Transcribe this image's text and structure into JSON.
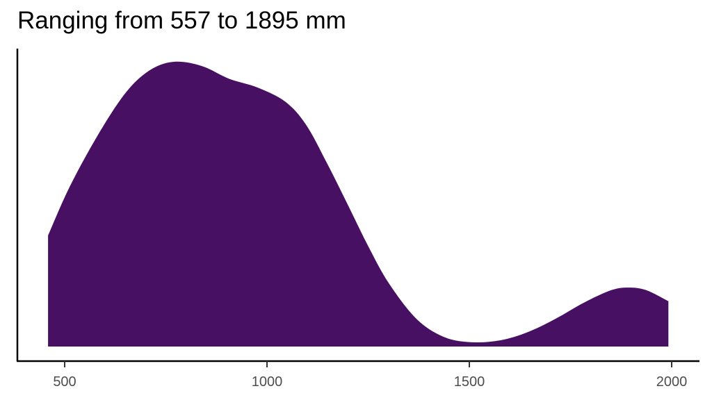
{
  "chart_data": {
    "type": "area",
    "subtype": "density",
    "title": "Ranging from 557 to 1895 mm",
    "xlabel": "",
    "ylabel": "",
    "xlim": [
      420,
      2040
    ],
    "x_ticks": [
      500,
      1000,
      1500,
      2000
    ],
    "x_tick_labels": [
      "500",
      "1000",
      "1500",
      "2000"
    ],
    "y_ticks": [],
    "grid": false,
    "legend": "none",
    "fill_color": "#471063",
    "x": [
      459,
      512,
      581,
      650,
      710,
      770,
      839,
      907,
      976,
      1045,
      1096,
      1148,
      1199,
      1251,
      1302,
      1371,
      1440,
      1508,
      1577,
      1645,
      1714,
      1783,
      1851,
      1894,
      1937,
      1992
    ],
    "density_relative": [
      0.39,
      0.56,
      0.74,
      0.89,
      0.97,
      1.0,
      0.985,
      0.94,
      0.91,
      0.86,
      0.78,
      0.645,
      0.5,
      0.35,
      0.22,
      0.095,
      0.032,
      0.015,
      0.022,
      0.051,
      0.098,
      0.154,
      0.198,
      0.207,
      0.198,
      0.159
    ]
  },
  "title": "Ranging from 557 to 1895 mm",
  "axis": {
    "x_tick_labels": [
      "500",
      "1000",
      "1500",
      "2000"
    ]
  }
}
